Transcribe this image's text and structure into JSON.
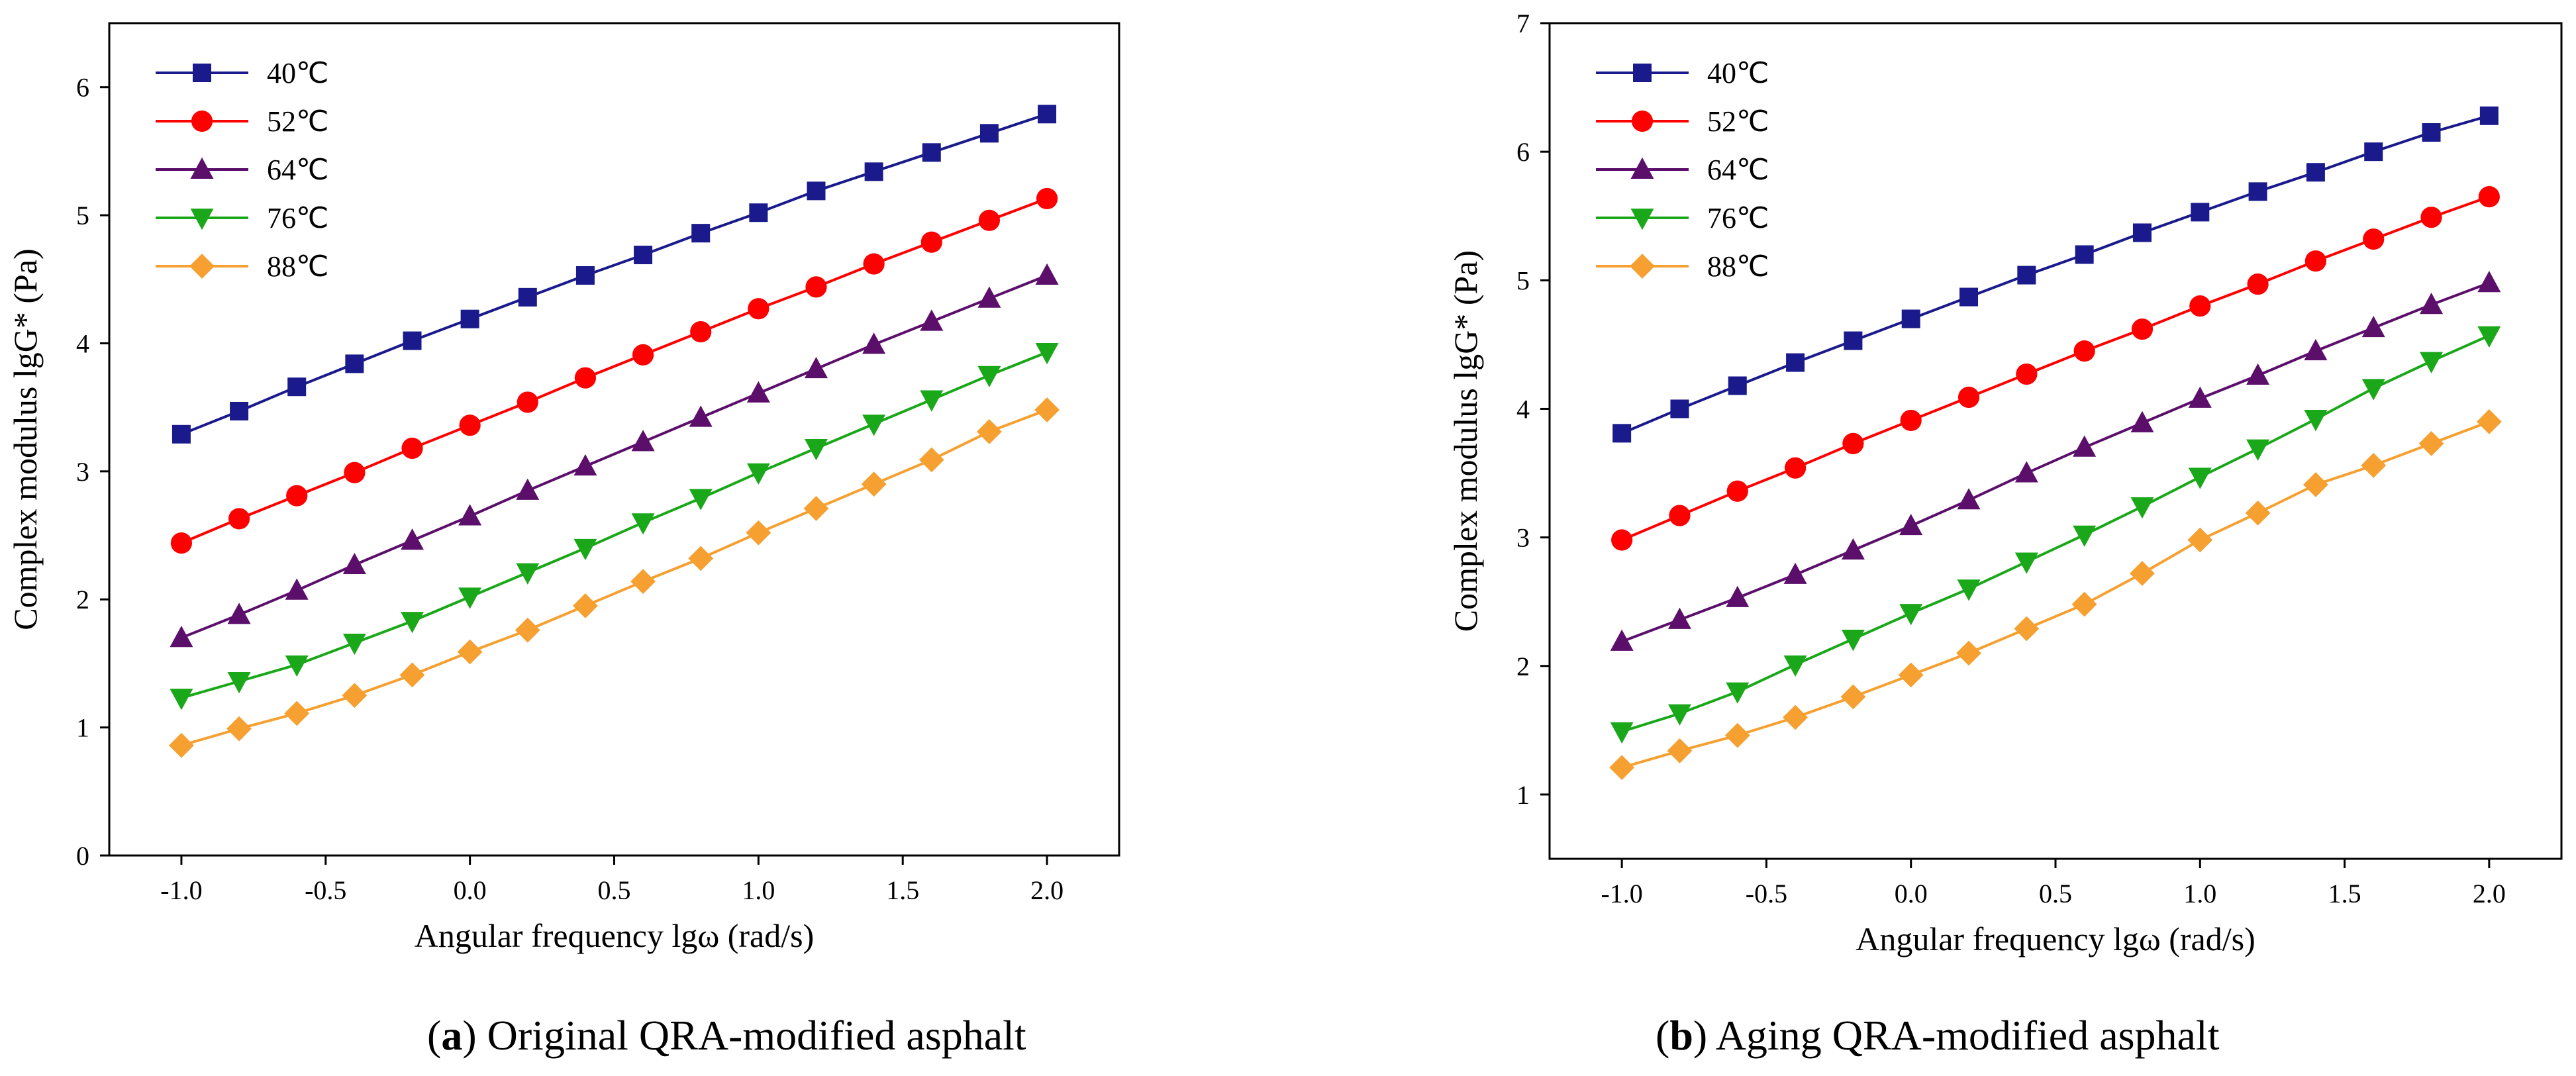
{
  "chart_data": [
    {
      "type": "line",
      "panel": "a",
      "caption_letter": "a",
      "caption_text": ") Original QRA-modified asphalt",
      "xlabel": "Angular frequency lgω (rad/s)",
      "ylabel": "Complex modulus lgG* (Pa)",
      "xlim": [
        -1.25,
        2.25
      ],
      "ylim": [
        0,
        6.5
      ],
      "xticks": [
        -1.0,
        -0.5,
        0.0,
        0.5,
        1.0,
        1.5,
        2.0
      ],
      "xtick_labels": [
        "-1.0",
        "-0.5",
        "0.0",
        "0.5",
        "1.0",
        "1.5",
        "2.0"
      ],
      "yticks": [
        0,
        1,
        2,
        3,
        4,
        5,
        6
      ],
      "ytick_labels": [
        "0",
        "1",
        "2",
        "3",
        "4",
        "5",
        "6"
      ],
      "x": [
        -1.0,
        -0.8,
        -0.6,
        -0.4,
        -0.2,
        0.0,
        0.2,
        0.4,
        0.6,
        0.8,
        1.0,
        1.2,
        1.4,
        1.6,
        1.8,
        2.0
      ],
      "legend_position": "top-left",
      "series": [
        {
          "name": "40℃",
          "color": "#1a1a8c",
          "marker": "square",
          "values": [
            3.29,
            3.47,
            3.66,
            3.84,
            4.02,
            4.19,
            4.36,
            4.53,
            4.69,
            4.86,
            5.02,
            5.19,
            5.34,
            5.49,
            5.64,
            5.79
          ]
        },
        {
          "name": "52℃",
          "color": "#ff0000",
          "marker": "circle",
          "values": [
            2.44,
            2.63,
            2.81,
            2.99,
            3.18,
            3.36,
            3.54,
            3.73,
            3.91,
            4.09,
            4.27,
            4.44,
            4.62,
            4.79,
            4.96,
            5.13
          ]
        },
        {
          "name": "64℃",
          "color": "#5b0f6b",
          "marker": "triangle-up",
          "values": [
            1.7,
            1.88,
            2.07,
            2.27,
            2.46,
            2.65,
            2.85,
            3.04,
            3.23,
            3.42,
            3.61,
            3.8,
            3.99,
            4.17,
            4.35,
            4.53
          ]
        },
        {
          "name": "76℃",
          "color": "#1aa81a",
          "marker": "triangle-down",
          "values": [
            1.23,
            1.36,
            1.49,
            1.66,
            1.83,
            2.02,
            2.21,
            2.4,
            2.6,
            2.79,
            2.99,
            3.18,
            3.37,
            3.56,
            3.75,
            3.93
          ]
        },
        {
          "name": "88℃",
          "color": "#f5a030",
          "marker": "diamond",
          "values": [
            0.86,
            0.99,
            1.11,
            1.25,
            1.41,
            1.59,
            1.76,
            1.95,
            2.14,
            2.32,
            2.52,
            2.71,
            2.9,
            3.09,
            3.31,
            3.48
          ]
        }
      ]
    },
    {
      "type": "line",
      "panel": "b",
      "caption_letter": "b",
      "caption_text": ") Aging QRA-modified asphalt",
      "xlabel": "Angular frequency lgω (rad/s)",
      "ylabel": "Complex modulus lgG* (Pa)",
      "xlim": [
        -1.25,
        2.25
      ],
      "ylim": [
        0.5,
        7
      ],
      "xticks": [
        -1.0,
        -0.5,
        0.0,
        0.5,
        1.0,
        1.5,
        2.0
      ],
      "xtick_labels": [
        "-1.0",
        "-0.5",
        "0.0",
        "0.5",
        "1.0",
        "1.5",
        "2.0"
      ],
      "yticks": [
        1,
        2,
        3,
        4,
        5,
        6,
        7
      ],
      "ytick_labels": [
        "1",
        "2",
        "3",
        "4",
        "5",
        "6",
        "7"
      ],
      "x": [
        -1.0,
        -0.8,
        -0.6,
        -0.4,
        -0.2,
        0.0,
        0.2,
        0.4,
        0.6,
        0.8,
        1.0,
        1.2,
        1.4,
        1.6,
        1.8,
        2.0
      ],
      "legend_position": "top-left",
      "series": [
        {
          "name": "40℃",
          "color": "#1a1a8c",
          "marker": "square",
          "values": [
            3.81,
            4.0,
            4.18,
            4.36,
            4.53,
            4.7,
            4.87,
            5.04,
            5.2,
            5.37,
            5.53,
            5.69,
            5.84,
            6.0,
            6.15,
            6.28
          ]
        },
        {
          "name": "52℃",
          "color": "#ff0000",
          "marker": "circle",
          "values": [
            2.98,
            3.17,
            3.36,
            3.54,
            3.73,
            3.91,
            4.09,
            4.27,
            4.45,
            4.62,
            4.8,
            4.97,
            5.15,
            5.32,
            5.49,
            5.65
          ]
        },
        {
          "name": "64℃",
          "color": "#5b0f6b",
          "marker": "triangle-up",
          "values": [
            2.19,
            2.36,
            2.53,
            2.71,
            2.9,
            3.09,
            3.29,
            3.5,
            3.7,
            3.89,
            4.08,
            4.26,
            4.45,
            4.63,
            4.81,
            4.98
          ]
        },
        {
          "name": "76℃",
          "color": "#1aa81a",
          "marker": "triangle-down",
          "values": [
            1.49,
            1.63,
            1.8,
            2.01,
            2.21,
            2.41,
            2.6,
            2.81,
            3.02,
            3.24,
            3.47,
            3.69,
            3.92,
            4.16,
            4.37,
            4.57
          ]
        },
        {
          "name": "88℃",
          "color": "#f5a030",
          "marker": "diamond",
          "values": [
            1.21,
            1.34,
            1.46,
            1.6,
            1.76,
            1.93,
            2.1,
            2.29,
            2.48,
            2.72,
            2.98,
            3.19,
            3.41,
            3.56,
            3.73,
            3.9
          ]
        }
      ]
    }
  ]
}
